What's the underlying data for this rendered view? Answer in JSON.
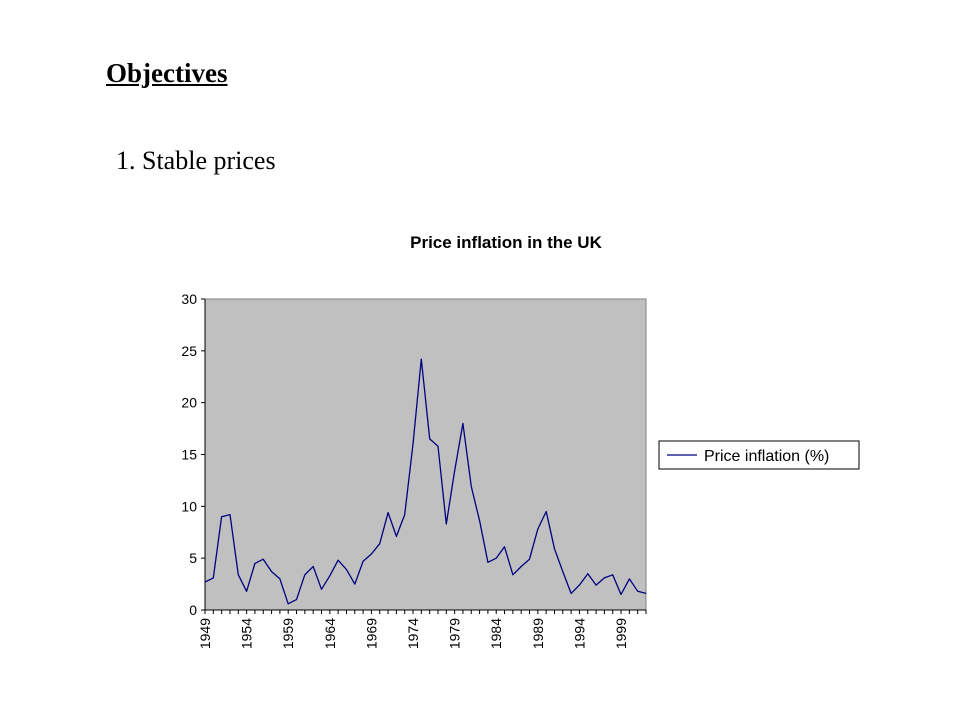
{
  "slide": {
    "heading": "Objectives",
    "subheading": "1. Stable prices"
  },
  "chart_data": {
    "type": "line",
    "title": "Price inflation in the UK",
    "xlabel": "",
    "ylabel": "",
    "ylim": [
      0,
      30
    ],
    "yticks": [
      0,
      5,
      10,
      15,
      20,
      25,
      30
    ],
    "xlim": [
      1949,
      2002
    ],
    "xticks": [
      "1949",
      "1954",
      "1959",
      "1964",
      "1969",
      "1974",
      "1979",
      "1984",
      "1989",
      "1994",
      "1999"
    ],
    "grid": false,
    "legend_position": "right",
    "plot_background": "#c0c0c0",
    "line_color": "#000080",
    "series": [
      {
        "name": "Price inflation (%)",
        "x": [
          1949,
          1950,
          1951,
          1952,
          1953,
          1954,
          1955,
          1956,
          1957,
          1958,
          1959,
          1960,
          1961,
          1962,
          1963,
          1964,
          1965,
          1966,
          1967,
          1968,
          1969,
          1970,
          1971,
          1972,
          1973,
          1974,
          1975,
          1976,
          1977,
          1978,
          1979,
          1980,
          1981,
          1982,
          1983,
          1984,
          1985,
          1986,
          1987,
          1988,
          1989,
          1990,
          1991,
          1992,
          1993,
          1994,
          1995,
          1996,
          1997,
          1998,
          1999,
          2000,
          2001,
          2002
        ],
        "values": [
          2.7,
          3.1,
          9.0,
          9.2,
          3.4,
          1.8,
          4.5,
          4.9,
          3.7,
          3.0,
          0.6,
          1.0,
          3.4,
          4.2,
          2.0,
          3.3,
          4.8,
          3.9,
          2.5,
          4.7,
          5.4,
          6.4,
          9.4,
          7.1,
          9.2,
          16.0,
          24.2,
          16.5,
          15.8,
          8.3,
          13.4,
          18.0,
          11.9,
          8.6,
          4.6,
          5.0,
          6.1,
          3.4,
          4.2,
          4.9,
          7.8,
          9.5,
          5.9,
          3.7,
          1.6,
          2.4,
          3.5,
          2.4,
          3.1,
          3.4,
          1.5,
          3.0,
          1.8,
          1.6
        ]
      }
    ]
  }
}
